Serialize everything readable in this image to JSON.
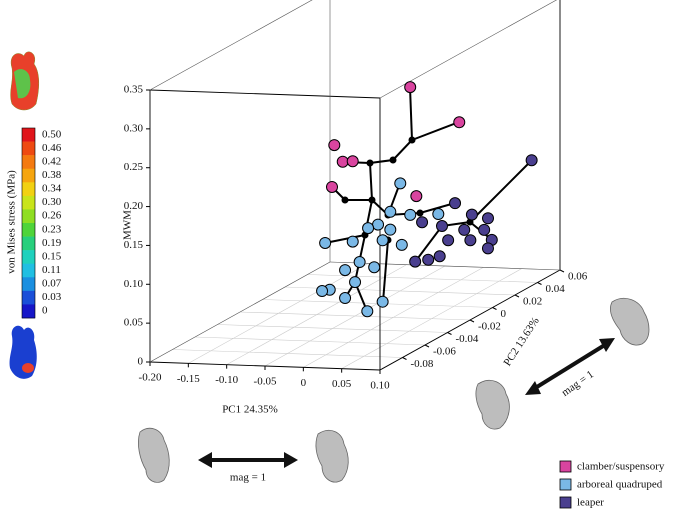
{
  "chart_data": {
    "type": "scatter3d",
    "xlabel": "PC1 24.35%",
    "ylabel": "PC2 13.63%",
    "zlabel": "MWM",
    "xlim": [
      -0.2,
      0.1
    ],
    "ylim": [
      -0.1,
      0.06
    ],
    "zlim": [
      0,
      0.35
    ],
    "xticks": [
      {
        "value": -0.2,
        "label": "-0.20"
      },
      -0.15,
      {
        "value": -0.1,
        "label": "-0.10"
      },
      -0.05,
      0,
      0.05,
      {
        "value": 0.1,
        "label": "0.10"
      }
    ],
    "yticks": [
      -0.08,
      -0.06,
      -0.04,
      -0.02,
      0,
      0.02,
      0.04,
      0.06
    ],
    "zticks": [
      0,
      0.05,
      {
        "value": 0.1,
        "label": "0.10"
      },
      0.15,
      {
        "value": 0.2,
        "label": "0.20"
      },
      0.25,
      {
        "value": 0.3,
        "label": "0.30"
      },
      0.35
    ],
    "grid": true,
    "series": [
      {
        "name": "clamber/suspensory",
        "color": "#d9449f",
        "x": [
          0.022,
          0.086,
          -0.077,
          -0.066,
          -0.053,
          -0.08,
          0.03
        ],
        "y": [
          -0.02,
          -0.02,
          -0.02,
          -0.02,
          -0.02,
          -0.02,
          -0.02
        ],
        "z": [
          0.297,
          0.254,
          0.219,
          0.198,
          0.199,
          0.165,
          0.157
        ]
      },
      {
        "name": "arboreal quadruped",
        "color": "#7ab8e6",
        "x": [
          0.056,
          0.043,
          0.069,
          0.088,
          0.027,
          0.014,
          0.043,
          -0.006,
          0.033,
          0.058,
          -0.042,
          0.003,
          -0.016,
          0.022,
          -0.036,
          -0.046,
          -0.016,
          0.033,
          0.013,
          -0.003
        ],
        "y": [
          -0.052,
          -0.052,
          -0.052,
          -0.04,
          -0.052,
          -0.052,
          -0.052,
          -0.052,
          -0.052,
          -0.052,
          -0.052,
          -0.052,
          -0.052,
          -0.052,
          -0.052,
          -0.052,
          -0.052,
          -0.052,
          -0.052,
          -0.052
        ],
        "z": [
          0.2,
          0.163,
          0.16,
          0.152,
          0.146,
          0.141,
          0.14,
          0.123,
          0.126,
          0.121,
          0.12,
          0.097,
          0.086,
          0.091,
          0.06,
          0.058,
          0.05,
          0.047,
          0.034,
          0.071
        ]
      },
      {
        "name": "leaper",
        "color": "#4a3f8f",
        "x": [
          0.063,
          0.057,
          0.079,
          0.1,
          0.014,
          0.04,
          0.069,
          0.095,
          0.048,
          0.077,
          0.058,
          0.053,
          0.037,
          0.022,
          0.005
        ],
        "y": [
          0.06,
          -0.004,
          -0.004,
          -0.004,
          -0.004,
          -0.004,
          -0.004,
          -0.004,
          -0.004,
          -0.004,
          0.028,
          0.028,
          -0.004,
          -0.004,
          -0.004
        ],
        "z": [
          0.14,
          0.136,
          0.122,
          0.118,
          0.11,
          0.106,
          0.102,
          0.103,
          0.088,
          0.089,
          0.063,
          0.052,
          0.067,
          0.062,
          0.059
        ]
      }
    ],
    "colorbar": {
      "title": "von Mises stress (MPa)",
      "levels": [
        "0.50",
        "0.46",
        "0.42",
        "0.38",
        "0.34",
        "0.30",
        "0.26",
        "0.23",
        "0.19",
        "0.15",
        "0.11",
        "0.07",
        "0.03",
        "0"
      ],
      "colors": [
        "#e0151b",
        "#ee4a12",
        "#f47a10",
        "#f6a50f",
        "#f2d112",
        "#c9e41a",
        "#8fde22",
        "#4fd43a",
        "#27cf7c",
        "#1fd1bd",
        "#20bfe2",
        "#1a8fe0",
        "#1a4fd8",
        "#1616c8"
      ]
    },
    "annotations": [
      "mag = 1",
      "mag = 1"
    ]
  }
}
